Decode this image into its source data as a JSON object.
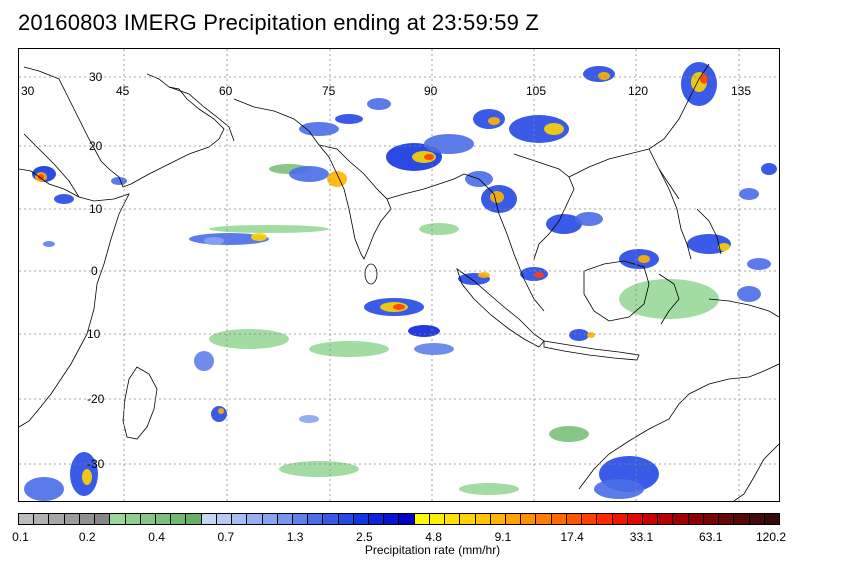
{
  "title": "20160803 IMERG Precipitation ending at 23:59:59 Z",
  "map": {
    "lon_labels": [
      "30",
      "45",
      "60",
      "75",
      "90",
      "105",
      "120",
      "135"
    ],
    "lat_labels": [
      "30",
      "20",
      "10",
      "0",
      "10",
      "-20",
      "-30"
    ]
  },
  "colorbar": {
    "label": "Precipitation rate (mm/hr)",
    "tick_labels": [
      "0.1",
      "0.2",
      "0.4",
      "0.7",
      "1.3",
      "2.5",
      "4.8",
      "9.1",
      "17.4",
      "33.1",
      "63.1",
      "120.2"
    ],
    "colors": [
      "#bdbdbd",
      "#b2b2b2",
      "#a7a7a7",
      "#9c9c9c",
      "#919191",
      "#878787",
      "#99d899",
      "#8fd08f",
      "#85c885",
      "#7bc07b",
      "#71b871",
      "#67b067",
      "#c8d6f5",
      "#b8caf4",
      "#a8bdf3",
      "#98b0f1",
      "#88a3ef",
      "#7896ed",
      "#5f80ea",
      "#4a6de8",
      "#375ae6",
      "#2449e4",
      "#1236e0",
      "#0a25da",
      "#0714d0",
      "#0003c3",
      "#fffb00",
      "#fff000",
      "#ffe200",
      "#ffd400",
      "#ffc500",
      "#ffb400",
      "#ffa200",
      "#ff9000",
      "#ff7d00",
      "#ff6a00",
      "#ff5600",
      "#ff4000",
      "#ff2a00",
      "#f01500",
      "#e00800",
      "#cc0000",
      "#b80000",
      "#a30000",
      "#8e0000",
      "#7a0505",
      "#660808",
      "#550a0a",
      "#440b0b",
      "#380b0b"
    ]
  }
}
